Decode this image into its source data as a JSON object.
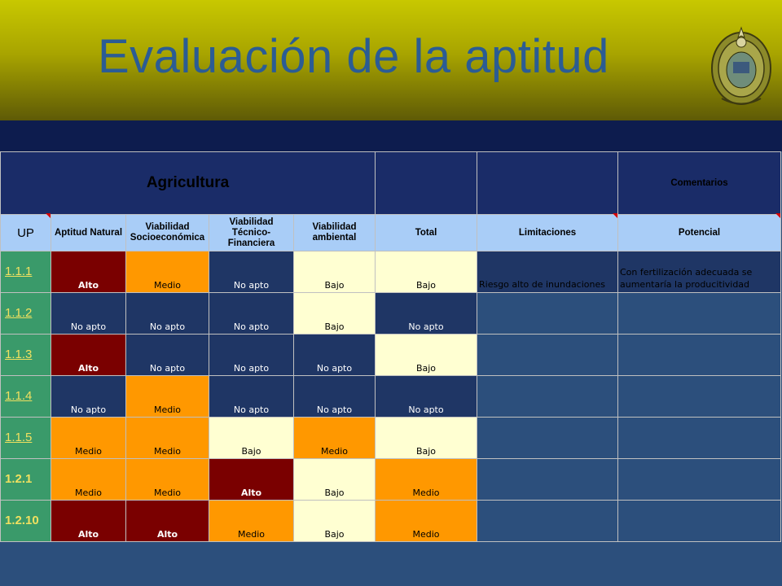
{
  "title": "Evaluación de la aptitud",
  "table": {
    "group_header": "Agricultura",
    "comments_header": "Comentarios",
    "columns": [
      "UP",
      "Aptitud Natural",
      "Viabilidad Socioeconómica",
      "Viabilidad Técnico-Financiera",
      "Viabilidad ambiental",
      "Total",
      "Limitaciones",
      "Potencial"
    ],
    "rows": [
      {
        "up": "1.1.1",
        "natural": "Alto",
        "socio": "Medio",
        "tecnico": "No apto",
        "ambiental": "Bajo",
        "total": "Bajo",
        "limitaciones": "Riesgo alto de inundaciones",
        "potencial": "Con fertilización adecuada se aumentaría la producitividad"
      },
      {
        "up": "1.1.2",
        "natural": "No apto",
        "socio": "No apto",
        "tecnico": "No apto",
        "ambiental": "Bajo",
        "total": "No apto",
        "limitaciones": "",
        "potencial": ""
      },
      {
        "up": "1.1.3",
        "natural": "Alto",
        "socio": "No apto",
        "tecnico": "No apto",
        "ambiental": "No apto",
        "total": "Bajo",
        "limitaciones": "",
        "potencial": ""
      },
      {
        "up": "1.1.4",
        "natural": "No apto",
        "socio": "Medio",
        "tecnico": "No apto",
        "ambiental": "No apto",
        "total": "No apto",
        "limitaciones": "",
        "potencial": ""
      },
      {
        "up": "1.1.5",
        "natural": "Medio",
        "socio": "Medio",
        "tecnico": "Bajo",
        "ambiental": "Medio",
        "total": "Bajo",
        "limitaciones": "",
        "potencial": ""
      },
      {
        "up": "1.2.1",
        "natural": "Medio",
        "socio": "Medio",
        "tecnico": "Alto",
        "ambiental": "Bajo",
        "total": "Medio",
        "limitaciones": "",
        "potencial": ""
      },
      {
        "up": "1.2.10",
        "natural": "Alto",
        "socio": "Alto",
        "tecnico": "Medio",
        "ambiental": "Bajo",
        "total": "Medio",
        "limitaciones": "",
        "potencial": ""
      }
    ]
  },
  "level_colors": {
    "Alto": "#7a0000",
    "Medio": "#ff9800",
    "Bajo": "#ffffd2",
    "No apto": "#1f3665"
  },
  "theme": {
    "header_gradient_top": "#c8c800",
    "title_color": "#2b5c94",
    "up_column_color": "#3a9a6a",
    "column_header_color": "#a9cdf7"
  },
  "icons": {
    "seal": "university-seal-emblem"
  }
}
